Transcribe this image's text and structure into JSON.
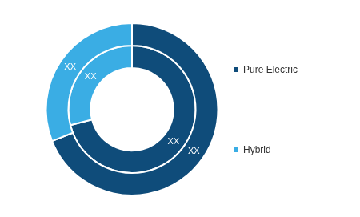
{
  "chart_data": {
    "type": "doughnut",
    "categories": [
      "Pure Electric",
      "Hybrid"
    ],
    "colors": [
      "#0f4c7a",
      "#3aade4"
    ],
    "series": [
      {
        "values": [
          69,
          31
        ],
        "value_labels": [
          "XX",
          "XX"
        ]
      },
      {
        "values": [
          71,
          29
        ],
        "value_labels": [
          "XX",
          "XX"
        ]
      }
    ],
    "data_labels": true,
    "legend": "right"
  }
}
